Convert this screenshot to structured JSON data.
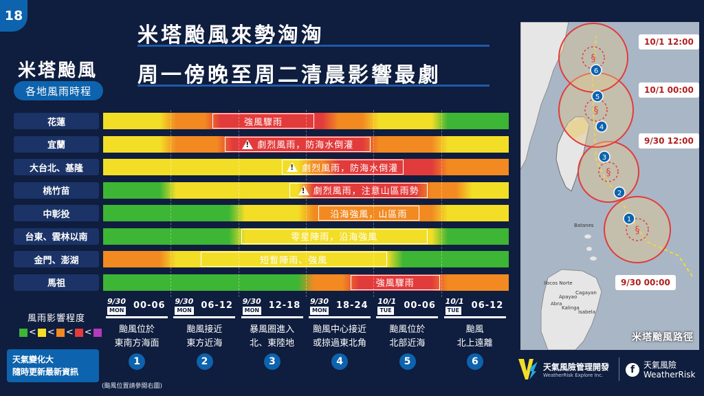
{
  "page_number": "18",
  "headline": [
    "米塔颱風來勢洶洶",
    "周一傍晚至周二清晨影響最劇"
  ],
  "subtitle": "米塔颱風",
  "subtitle_pill": "各地風雨時程",
  "colors": {
    "green": "#3db535",
    "yellow": "#f3de27",
    "orange": "#f28a21",
    "red": "#e23b3b",
    "purple": "#b23bbd",
    "accent_blue": "#0d63ad",
    "background": "#0f1d3e"
  },
  "rows": [
    {
      "label": "花蓮",
      "segments": [
        {
          "level": "yellow",
          "from": 0,
          "to": 0.16
        },
        {
          "level": "orange",
          "from": 0.16,
          "to": 0.27
        },
        {
          "level": "red",
          "from": 0.27,
          "to": 0.56
        },
        {
          "level": "orange",
          "from": 0.56,
          "to": 0.66
        },
        {
          "level": "yellow",
          "from": 0.66,
          "to": 0.83
        },
        {
          "level": "green",
          "from": 0.83,
          "to": 1
        }
      ],
      "callout": {
        "text": "強風驟雨",
        "warning": false,
        "from": 0.27,
        "to": 0.52
      }
    },
    {
      "label": "宜蘭",
      "segments": [
        {
          "level": "yellow",
          "from": 0,
          "to": 0.16
        },
        {
          "level": "orange",
          "from": 0.16,
          "to": 0.3
        },
        {
          "level": "red",
          "from": 0.3,
          "to": 0.66
        },
        {
          "level": "orange",
          "from": 0.66,
          "to": 0.83
        },
        {
          "level": "yellow",
          "from": 0.83,
          "to": 1
        }
      ],
      "callout": {
        "text": "劇烈風雨，防海水倒灌",
        "warning": true,
        "from": 0.3,
        "to": 0.66
      }
    },
    {
      "label": "大台北、基隆",
      "segments": [
        {
          "level": "yellow",
          "from": 0,
          "to": 0.5
        },
        {
          "level": "orange",
          "from": 0.5,
          "to": 0.56
        },
        {
          "level": "red",
          "from": 0.56,
          "to": 0.83
        },
        {
          "level": "orange",
          "from": 0.83,
          "to": 1
        }
      ],
      "callout": {
        "text": "劇烈風雨，防海水倒灌",
        "warning": true,
        "from": 0.44,
        "to": 0.74
      }
    },
    {
      "label": "桃竹苗",
      "segments": [
        {
          "level": "green",
          "from": 0,
          "to": 0.16
        },
        {
          "level": "yellow",
          "from": 0.16,
          "to": 0.5
        },
        {
          "level": "red",
          "from": 0.5,
          "to": 0.79
        },
        {
          "level": "orange",
          "from": 0.79,
          "to": 0.89
        },
        {
          "level": "yellow",
          "from": 0.89,
          "to": 1
        }
      ],
      "callout": {
        "text": "劇烈風雨，注意山區雨勢",
        "warning": true,
        "from": 0.46,
        "to": 0.8
      }
    },
    {
      "label": "中彰投",
      "segments": [
        {
          "level": "green",
          "from": 0,
          "to": 0.33
        },
        {
          "level": "yellow",
          "from": 0.33,
          "to": 0.5
        },
        {
          "level": "orange",
          "from": 0.5,
          "to": 0.83
        },
        {
          "level": "yellow",
          "from": 0.83,
          "to": 1
        }
      ],
      "callout": {
        "text": "沿海強風，山區雨",
        "warning": false,
        "from": 0.53,
        "to": 0.78
      }
    },
    {
      "label": "台東、雲林以南",
      "segments": [
        {
          "level": "green",
          "from": 0,
          "to": 0.33
        },
        {
          "level": "yellow",
          "from": 0.33,
          "to": 0.83
        },
        {
          "level": "green",
          "from": 0.83,
          "to": 1
        }
      ],
      "callout": {
        "text": "零星陣雨，沿海強風",
        "warning": false,
        "from": 0.34,
        "to": 0.8
      }
    },
    {
      "label": "金門、澎湖",
      "segments": [
        {
          "level": "orange",
          "from": 0,
          "to": 0.16
        },
        {
          "level": "yellow",
          "from": 0.16,
          "to": 0.72
        },
        {
          "level": "green",
          "from": 0.72,
          "to": 1
        }
      ],
      "callout": {
        "text": "短暫陣雨、強風",
        "warning": false,
        "from": 0.24,
        "to": 0.7
      }
    },
    {
      "label": "馬祖",
      "segments": [
        {
          "level": "green",
          "from": 0,
          "to": 0.5
        },
        {
          "level": "orange",
          "from": 0.5,
          "to": 0.61
        },
        {
          "level": "red",
          "from": 0.61,
          "to": 0.83
        },
        {
          "level": "orange",
          "from": 0.83,
          "to": 1
        }
      ],
      "callout": {
        "text": "強風驟雨",
        "warning": false,
        "from": 0.61,
        "to": 0.83
      }
    }
  ],
  "time_slots": [
    {
      "date": "9/30",
      "day": "MON",
      "range": "00-06",
      "desc": [
        "颱風位於",
        "東南方海面"
      ],
      "step": "1"
    },
    {
      "date": "9/30",
      "day": "MON",
      "range": "06-12",
      "desc": [
        "颱風接近",
        "東方近海"
      ],
      "step": "2"
    },
    {
      "date": "9/30",
      "day": "MON",
      "range": "12-18",
      "desc": [
        "暴風圈進入",
        "北、東陸地"
      ],
      "step": "3"
    },
    {
      "date": "9/30",
      "day": "MON",
      "range": "18-24",
      "desc": [
        "颱風中心接近",
        "或掠過東北角"
      ],
      "step": "4"
    },
    {
      "date": "10/1",
      "day": "TUE",
      "range": "00-06",
      "desc": [
        "颱風位於",
        "北部近海"
      ],
      "step": "5"
    },
    {
      "date": "10/1",
      "day": "TUE",
      "range": "06-12",
      "desc": [
        "颱風",
        "北上遠離"
      ],
      "step": "6"
    }
  ],
  "legend": {
    "title": "風雨影響程度",
    "order": [
      "green",
      "yellow",
      "orange",
      "red",
      "purple"
    ],
    "separator": "<"
  },
  "note_box": [
    "天氣變化大",
    "隨時更新最新資訊"
  ],
  "footnote": "(颱風位置請參閱右圖)",
  "map": {
    "caption": "米塔颱風路徑",
    "time_labels": [
      "10/1 12:00",
      "10/1 00:00",
      "9/30 12:00",
      "9/30 00:00"
    ],
    "place_labels": [
      "Batanes",
      "Ilocos Norte",
      "Cagayan",
      "Abra",
      "Apayao",
      "Isabela",
      "Kalinga"
    ]
  },
  "brand": {
    "name": "天氣風險管理開發",
    "sub": "WeatherRisk Explore Inc.",
    "fb_name": "天氣風險",
    "fb_sub": "WeatherRisk"
  }
}
